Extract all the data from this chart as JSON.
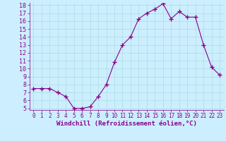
{
  "x": [
    0,
    1,
    2,
    3,
    4,
    5,
    6,
    7,
    8,
    9,
    10,
    11,
    12,
    13,
    14,
    15,
    16,
    17,
    18,
    19,
    20,
    21,
    22,
    23
  ],
  "y": [
    7.5,
    7.5,
    7.5,
    7.0,
    6.5,
    5.0,
    5.0,
    5.2,
    6.5,
    8.0,
    10.8,
    13.0,
    14.0,
    16.3,
    17.0,
    17.5,
    18.2,
    16.3,
    17.2,
    16.5,
    16.5,
    13.0,
    10.2,
    9.2
  ],
  "line_color": "#880088",
  "marker": "+",
  "marker_size": 4,
  "marker_color": "#880088",
  "bg_color": "#cceeff",
  "grid_color": "#aadddd",
  "xlabel": "Windchill (Refroidissement éolien,°C)",
  "ylim": [
    5,
    18
  ],
  "xlim": [
    -0.5,
    23.5
  ],
  "yticks": [
    5,
    6,
    7,
    8,
    9,
    10,
    11,
    12,
    13,
    14,
    15,
    16,
    17,
    18
  ],
  "xticks": [
    0,
    1,
    2,
    3,
    4,
    5,
    6,
    7,
    8,
    9,
    10,
    11,
    12,
    13,
    14,
    15,
    16,
    17,
    18,
    19,
    20,
    21,
    22,
    23
  ],
  "tick_color": "#880088",
  "xlabel_fontsize": 6.5,
  "ytick_fontsize": 6,
  "xtick_fontsize": 5.5
}
